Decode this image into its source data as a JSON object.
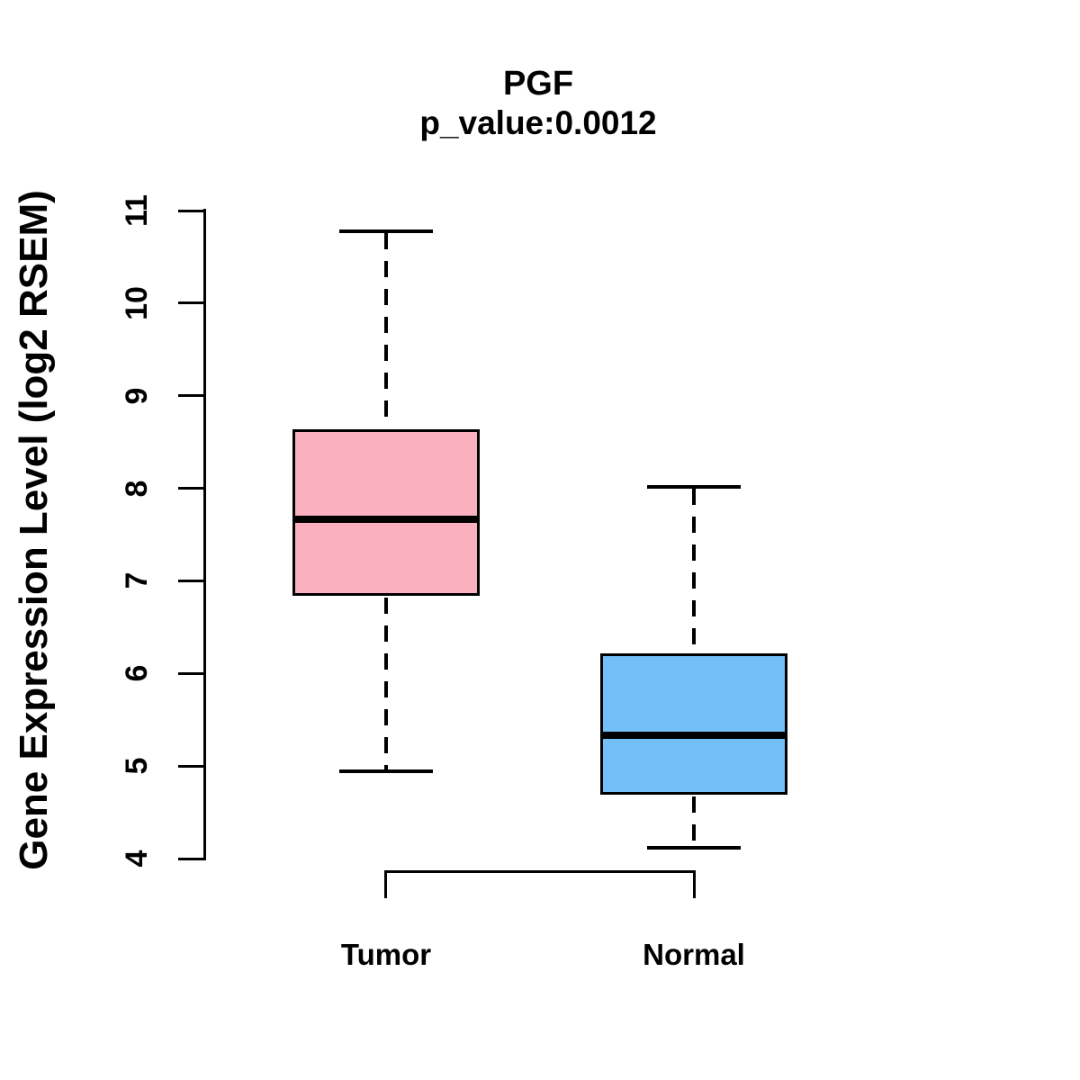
{
  "chart_data": {
    "type": "boxplot",
    "title": "PGF",
    "subtitle": "p_value:0.0012",
    "ylabel": "Gene Expression Level (log2 RSEM)",
    "xlabel": "",
    "categories": [
      "Tumor",
      "Normal"
    ],
    "ylim": [
      4,
      11
    ],
    "yticks": [
      4,
      5,
      6,
      7,
      8,
      9,
      10,
      11
    ],
    "grid": false,
    "legend": "none",
    "series": [
      {
        "name": "Tumor",
        "color": "#FBB0C0",
        "whisker_low": 4.94,
        "q1": 6.84,
        "median": 7.67,
        "q3": 8.64,
        "whisker_high": 10.78
      },
      {
        "name": "Normal",
        "color": "#73BFF8",
        "whisker_low": 4.12,
        "q1": 4.69,
        "median": 5.33,
        "q3": 6.22,
        "whisker_high": 8.02
      }
    ],
    "comparison_bracket": {
      "from": "Tumor",
      "to": "Normal"
    }
  },
  "colors": {
    "tumor_fill": "#FBB0C0",
    "normal_fill": "#73BFF8",
    "line": "#000000",
    "background": "#ffffff"
  }
}
